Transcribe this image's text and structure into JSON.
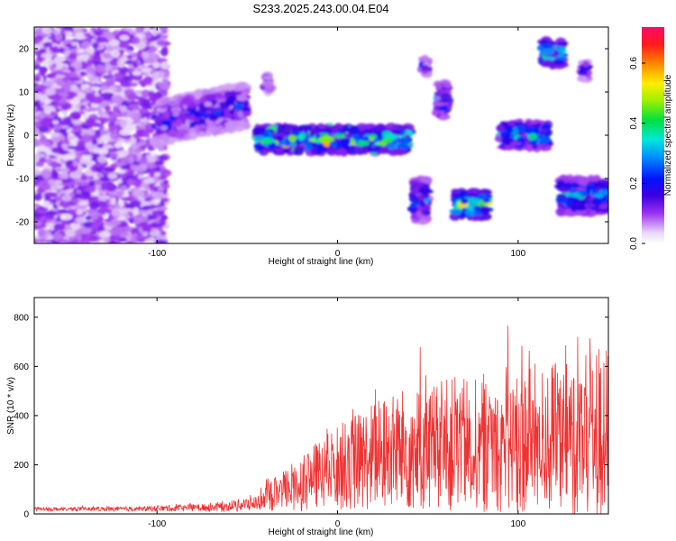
{
  "title": "S233.2025.243.00.04.E04",
  "chart_data": [
    {
      "type": "heatmap",
      "xlabel": "Height of straight line (km)",
      "ylabel": "Frequency (Hz)",
      "xlim": [
        -168,
        150
      ],
      "ylim": [
        -25,
        25
      ],
      "xticks": [
        -100,
        0,
        100
      ],
      "yticks": [
        -20,
        -10,
        0,
        10,
        20
      ],
      "colorbar": {
        "label": "Normalized spectral amplitude",
        "range": [
          0.0,
          0.72
        ],
        "ticks": [
          0.0,
          0.2,
          0.4,
          0.6
        ],
        "tick_labels": [
          "0.0",
          "0.2",
          "0.4",
          "0.6"
        ]
      },
      "features": [
        {
          "x_range": [
            -168,
            -95
          ],
          "y_range": [
            -25,
            25
          ],
          "intensity": 0.12,
          "kind": "diffuse_noise"
        },
        {
          "x_range": [
            -100,
            -50
          ],
          "center_y": 3,
          "half_width_hz": 5,
          "intensity": 0.22,
          "slope_hz_per_km": 0.08
        },
        {
          "x_range": [
            -45,
            40
          ],
          "center_y": -1,
          "half_width_hz": 3,
          "intensity": 0.45,
          "kind": "main_band"
        },
        {
          "x_range": [
            -40,
            -37
          ],
          "center_y": 12,
          "half_width_hz": 2,
          "intensity": 0.2
        },
        {
          "x_range": [
            42,
            50
          ],
          "center_y": -15,
          "half_width_hz": 5,
          "intensity": 0.28
        },
        {
          "x_range": [
            47,
            50
          ],
          "center_y": 16,
          "half_width_hz": 2,
          "intensity": 0.22
        },
        {
          "x_range": [
            55,
            61
          ],
          "center_y": 8,
          "half_width_hz": 4,
          "intensity": 0.3
        },
        {
          "x_range": [
            65,
            83
          ],
          "center_y": -16,
          "half_width_hz": 3,
          "intensity": 0.5
        },
        {
          "x_range": [
            90,
            117
          ],
          "center_y": 0,
          "half_width_hz": 3,
          "intensity": 0.38
        },
        {
          "x_range": [
            113,
            125
          ],
          "center_y": 19,
          "half_width_hz": 3,
          "intensity": 0.42
        },
        {
          "x_range": [
            135,
            139
          ],
          "center_y": 15,
          "half_width_hz": 2,
          "intensity": 0.22
        },
        {
          "x_range": [
            123,
            150
          ],
          "center_y": -14,
          "half_width_hz": 4,
          "intensity": 0.35
        }
      ]
    },
    {
      "type": "line",
      "xlabel": "Height of straight line (km)",
      "ylabel": "SNR (10 * v/v)",
      "xlim": [
        -168,
        150
      ],
      "ylim": [
        0,
        880
      ],
      "xticks": [
        -100,
        0,
        100
      ],
      "yticks": [
        0,
        200,
        400,
        600,
        800
      ],
      "color": "#ee3333",
      "series": [
        {
          "name": "SNR",
          "envelope": {
            "x": [
              -168,
              -120,
              -80,
              -60,
              -45,
              -40,
              -30,
              -20,
              -10,
              0,
              10,
              20,
              30,
              40,
              50,
              60,
              70,
              80,
              90,
              100,
              110,
              120,
              130,
              140,
              150
            ],
            "mean": [
              20,
              20,
              25,
              30,
              45,
              65,
              95,
              130,
              160,
              190,
              210,
              235,
              250,
              260,
              270,
              275,
              285,
              290,
              295,
              300,
              305,
              310,
              315,
              320,
              330
            ],
            "amplitude": [
              10,
              12,
              20,
              30,
              40,
              70,
              110,
              160,
              190,
              230,
              260,
              300,
              320,
              340,
              350,
              360,
              370,
              380,
              390,
              400,
              410,
              420,
              430,
              440,
              500
            ]
          }
        }
      ]
    }
  ]
}
